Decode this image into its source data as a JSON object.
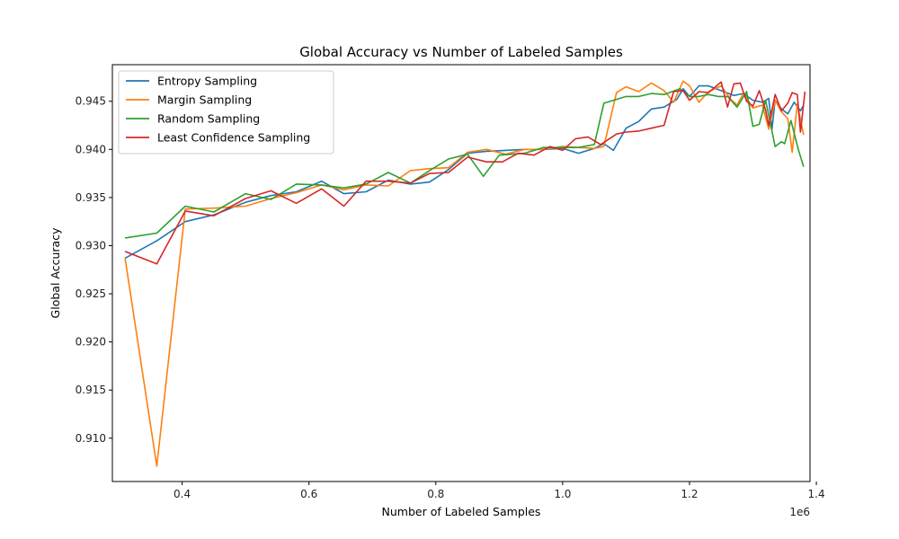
{
  "chart_data": {
    "type": "line",
    "title": "Global Accuracy vs Number of Labeled Samples",
    "xlabel": "Number of Labeled Samples",
    "ylabel": "Global Accuracy",
    "x_offset_label": "1e6",
    "xlim": [
      0.29,
      1.39
    ],
    "ylim": [
      0.9055,
      0.9488
    ],
    "xticks": [
      0.4,
      0.6,
      0.8,
      1.0,
      1.2,
      1.4
    ],
    "xtick_labels": [
      "0.4",
      "0.6",
      "0.8",
      "1.0",
      "1.2",
      "1.4"
    ],
    "yticks": [
      0.91,
      0.915,
      0.92,
      0.925,
      0.93,
      0.935,
      0.94,
      0.945
    ],
    "ytick_labels": [
      "0.910",
      "0.915",
      "0.920",
      "0.925",
      "0.930",
      "0.935",
      "0.940",
      "0.945"
    ],
    "grid": false,
    "legend_position": "top-left",
    "series": [
      {
        "name": "Entropy Sampling",
        "color": "#1f77b4",
        "x": [
          0.31,
          0.36,
          0.405,
          0.45,
          0.5,
          0.54,
          0.58,
          0.62,
          0.655,
          0.69,
          0.725,
          0.76,
          0.79,
          0.82,
          0.85,
          0.88,
          0.91,
          0.94,
          0.97,
          1.0,
          1.025,
          1.05,
          1.065,
          1.08,
          1.1,
          1.12,
          1.14,
          1.16,
          1.18,
          1.19,
          1.2,
          1.215,
          1.23,
          1.25,
          1.27,
          1.285,
          1.3,
          1.315,
          1.325,
          1.33,
          1.335,
          1.345,
          1.355,
          1.365,
          1.375,
          1.38
        ],
        "values": [
          0.9287,
          0.9305,
          0.9325,
          0.9332,
          0.9345,
          0.9352,
          0.9356,
          0.9367,
          0.9354,
          0.9356,
          0.9368,
          0.9364,
          0.9366,
          0.9379,
          0.9396,
          0.9398,
          0.9399,
          0.94,
          0.94,
          0.9401,
          0.9396,
          0.9401,
          0.9406,
          0.9399,
          0.9422,
          0.9429,
          0.9442,
          0.9444,
          0.9452,
          0.9463,
          0.9455,
          0.9466,
          0.9466,
          0.9461,
          0.9456,
          0.9458,
          0.9451,
          0.9449,
          0.9453,
          0.9421,
          0.9451,
          0.9442,
          0.9437,
          0.9449,
          0.944,
          0.9446
        ]
      },
      {
        "name": "Margin Sampling",
        "color": "#ff7f0e",
        "x": [
          0.31,
          0.36,
          0.405,
          0.45,
          0.5,
          0.54,
          0.58,
          0.62,
          0.655,
          0.69,
          0.725,
          0.76,
          0.79,
          0.82,
          0.85,
          0.88,
          0.91,
          0.94,
          0.97,
          1.0,
          1.025,
          1.05,
          1.065,
          1.085,
          1.1,
          1.12,
          1.14,
          1.16,
          1.175,
          1.19,
          1.2,
          1.215,
          1.23,
          1.25,
          1.265,
          1.275,
          1.285,
          1.3,
          1.315,
          1.325,
          1.335,
          1.345,
          1.355,
          1.362,
          1.37,
          1.38
        ],
        "values": [
          0.9287,
          0.9071,
          0.9338,
          0.9339,
          0.9341,
          0.9349,
          0.9355,
          0.9363,
          0.9358,
          0.9363,
          0.9362,
          0.9378,
          0.938,
          0.9381,
          0.9397,
          0.94,
          0.9395,
          0.94,
          0.94,
          0.9403,
          0.9402,
          0.9401,
          0.9403,
          0.9459,
          0.9465,
          0.946,
          0.9469,
          0.9461,
          0.9449,
          0.9471,
          0.9466,
          0.9449,
          0.946,
          0.9466,
          0.9452,
          0.9446,
          0.9458,
          0.9443,
          0.9446,
          0.9421,
          0.9451,
          0.9439,
          0.9432,
          0.9397,
          0.9447,
          0.9415
        ]
      },
      {
        "name": "Random Sampling",
        "color": "#2ca02c",
        "x": [
          0.31,
          0.36,
          0.405,
          0.45,
          0.5,
          0.54,
          0.58,
          0.62,
          0.655,
          0.69,
          0.725,
          0.76,
          0.79,
          0.82,
          0.85,
          0.875,
          0.9,
          0.94,
          0.97,
          1.0,
          1.025,
          1.05,
          1.065,
          1.085,
          1.1,
          1.12,
          1.14,
          1.16,
          1.185,
          1.2,
          1.215,
          1.23,
          1.245,
          1.26,
          1.275,
          1.29,
          1.3,
          1.31,
          1.32,
          1.335,
          1.345,
          1.35,
          1.36,
          1.372,
          1.38
        ],
        "values": [
          0.9308,
          0.9313,
          0.9341,
          0.9335,
          0.9354,
          0.9348,
          0.9364,
          0.9363,
          0.936,
          0.9364,
          0.9376,
          0.9365,
          0.9378,
          0.939,
          0.9395,
          0.9372,
          0.9394,
          0.9396,
          0.9402,
          0.9402,
          0.9402,
          0.9405,
          0.9448,
          0.9452,
          0.9455,
          0.9455,
          0.9458,
          0.9457,
          0.9463,
          0.9455,
          0.9455,
          0.9457,
          0.9455,
          0.9455,
          0.9444,
          0.946,
          0.9424,
          0.9426,
          0.9451,
          0.9403,
          0.9408,
          0.9406,
          0.943,
          0.9399,
          0.9382
        ]
      },
      {
        "name": "Least Confidence Sampling",
        "color": "#d62728",
        "x": [
          0.31,
          0.36,
          0.405,
          0.45,
          0.5,
          0.54,
          0.58,
          0.62,
          0.655,
          0.69,
          0.725,
          0.76,
          0.79,
          0.82,
          0.85,
          0.88,
          0.905,
          0.93,
          0.955,
          0.98,
          1.0,
          1.02,
          1.04,
          1.06,
          1.085,
          1.1,
          1.12,
          1.14,
          1.16,
          1.175,
          1.19,
          1.2,
          1.215,
          1.23,
          1.25,
          1.26,
          1.27,
          1.28,
          1.29,
          1.3,
          1.31,
          1.32,
          1.325,
          1.335,
          1.345,
          1.355,
          1.362,
          1.37,
          1.375,
          1.382
        ],
        "values": [
          0.9294,
          0.9281,
          0.9336,
          0.9331,
          0.9349,
          0.9357,
          0.9344,
          0.9359,
          0.9341,
          0.9367,
          0.9367,
          0.9365,
          0.9375,
          0.9376,
          0.9392,
          0.9387,
          0.9387,
          0.9396,
          0.9394,
          0.9403,
          0.9399,
          0.9411,
          0.9413,
          0.9405,
          0.9416,
          0.9418,
          0.9419,
          0.9422,
          0.9425,
          0.946,
          0.9461,
          0.9451,
          0.946,
          0.9459,
          0.947,
          0.9444,
          0.9468,
          0.9469,
          0.945,
          0.9445,
          0.9461,
          0.9441,
          0.9425,
          0.9457,
          0.944,
          0.9448,
          0.9459,
          0.9457,
          0.9418,
          0.946
        ]
      }
    ]
  }
}
